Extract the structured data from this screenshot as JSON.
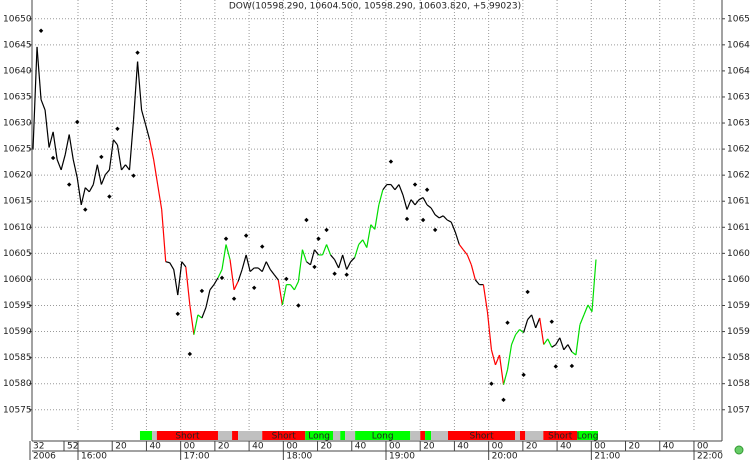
{
  "chart_data": {
    "type": "line",
    "title": "DOW(10598.290, 10604.500, 10598.290, 10603.820, +5.99023)",
    "values": [
      10624.9,
      10644.6,
      10634.5,
      10632.5,
      10625.3,
      10628.3,
      10623,
      10621,
      10623.9,
      10627.8,
      10623,
      10619.5,
      10614.3,
      10617.6,
      10616.8,
      10618.2,
      10622,
      10618.2,
      10620.1,
      10621,
      10626.8,
      10625.8,
      10621,
      10622,
      10621,
      10630.6,
      10641.8,
      10632.5,
      10629.7,
      10626.8,
      10623,
      10618.2,
      10613.4,
      10603.4,
      10603.2,
      10601.9,
      10597,
      10603.4,
      10602.4,
      10595.1,
      10589.4,
      10593.2,
      10592.6,
      10594.6,
      10598,
      10599,
      10600.3,
      10601.9,
      10606.7,
      10603.8,
      10598,
      10599.6,
      10601.9,
      10604.7,
      10601.5,
      10602.2,
      10602.2,
      10601.5,
      10603.4,
      10601.9,
      10600.9,
      10599.9,
      10595.1,
      10599,
      10599,
      10598,
      10599.6,
      10605.7,
      10603.4,
      10602.8,
      10605.7,
      10604.7,
      10604.7,
      10606.7,
      10604.7,
      10603.8,
      10602.2,
      10604.7,
      10601.9,
      10603.4,
      10604.2,
      10606.7,
      10607.6,
      10606.1,
      10610.5,
      10609.6,
      10614.3,
      10617.2,
      10618.2,
      10618.2,
      10617.2,
      10618.2,
      10616.2,
      10613.4,
      10615.3,
      10614.3,
      10615.3,
      10615.7,
      10614.3,
      10613.7,
      10612.4,
      10611.8,
      10612.2,
      10611.4,
      10611,
      10609.1,
      10606.7,
      10605.7,
      10604.7,
      10602.8,
      10599.9,
      10599,
      10599,
      10593.8,
      10586.5,
      10583.6,
      10585.5,
      10579.8,
      10582.7,
      10587.5,
      10589.4,
      10590.4,
      10589.8,
      10592.3,
      10593.2,
      10590.7,
      10592.6,
      10587.5,
      10588.6,
      10587,
      10587.5,
      10588.8,
      10586.5,
      10587.5,
      10586.1,
      10585.5,
      10591.3,
      10593.2,
      10595.1,
      10593.8,
      10603.82
    ],
    "segment_colors": [
      "#000",
      "#000",
      "#000",
      "#000",
      "#000",
      "#000",
      "#000",
      "#000",
      "#000",
      "#000",
      "#000",
      "#000",
      "#000",
      "#000",
      "#000",
      "#000",
      "#000",
      "#000",
      "#000",
      "#000",
      "#000",
      "#000",
      "#000",
      "#000",
      "#000",
      "#000",
      "#000",
      "#000",
      "#000",
      "#000",
      "#f00",
      "#f00",
      "#f00",
      "#f00",
      "#000",
      "#000",
      "#000",
      "#000",
      "#000",
      "#f00",
      "#f00",
      "#0d0",
      "#0d0",
      "#000",
      "#000",
      "#000",
      "#000",
      "#0d0",
      "#0d0",
      "#0d0",
      "#f00",
      "#f00",
      "#000",
      "#000",
      "#000",
      "#000",
      "#000",
      "#000",
      "#000",
      "#000",
      "#000",
      "#000",
      "#f00",
      "#0d0",
      "#0d0",
      "#0d0",
      "#0d0",
      "#0d0",
      "#0d0",
      "#000",
      "#000",
      "#000",
      "#0d0",
      "#0d0",
      "#0d0",
      "#000",
      "#000",
      "#000",
      "#000",
      "#000",
      "#000",
      "#0d0",
      "#0d0",
      "#0d0",
      "#0d0",
      "#0d0",
      "#0d0",
      "#0d0",
      "#000",
      "#000",
      "#000",
      "#000",
      "#000",
      "#000",
      "#000",
      "#000",
      "#000",
      "#000",
      "#000",
      "#000",
      "#000",
      "#000",
      "#000",
      "#000",
      "#000",
      "#000",
      "#000",
      "#f00",
      "#f00",
      "#f00",
      "#f00",
      "#000",
      "#000",
      "#f00",
      "#f00",
      "#f00",
      "#f00",
      "#f00",
      "#0d0",
      "#0d0",
      "#0d0",
      "#0d0",
      "#0d0",
      "#000",
      "#000",
      "#000",
      "#000",
      "#f00",
      "#0d0",
      "#0d0",
      "#000",
      "#000",
      "#000",
      "#000",
      "#000",
      "#0d0",
      "#0d0",
      "#0d0",
      "#0d0",
      "#0d0",
      "#0d0"
    ],
    "markers": [
      null,
      null,
      10647.7,
      null,
      null,
      10623.3,
      null,
      null,
      null,
      10618.2,
      null,
      10630.2,
      null,
      10613.4,
      null,
      null,
      null,
      10623.5,
      null,
      10615.9,
      null,
      10628.9,
      null,
      null,
      null,
      10619.9,
      10643.5,
      null,
      null,
      null,
      null,
      null,
      null,
      null,
      null,
      null,
      10593.4,
      null,
      null,
      10585.7,
      null,
      null,
      10597.8,
      null,
      null,
      null,
      null,
      10600.3,
      10607.8,
      null,
      10596.3,
      null,
      null,
      10608.4,
      null,
      10598.4,
      null,
      10606.3,
      null,
      null,
      null,
      null,
      null,
      10600.1,
      null,
      null,
      10595,
      null,
      10611.4,
      null,
      10602.4,
      10607.8,
      null,
      10609.5,
      null,
      10601.1,
      null,
      null,
      10600.9,
      null,
      null,
      null,
      null,
      null,
      null,
      null,
      null,
      null,
      null,
      10622.6,
      null,
      null,
      null,
      10611.6,
      null,
      10618.2,
      null,
      10611.4,
      10617.2,
      null,
      10609.5,
      null,
      null,
      null,
      null,
      null,
      null,
      null,
      null,
      null,
      null,
      null,
      null,
      null,
      10580,
      null,
      null,
      10576.9,
      10591.7,
      null,
      null,
      null,
      10581.7,
      10597.6,
      null,
      null,
      null,
      null,
      null,
      10591.9,
      10583.3,
      null,
      null,
      null,
      10583.4,
      null,
      null,
      null,
      null,
      null,
      null
    ],
    "marker_color": "#000",
    "ylim": [
      10571.5,
      10653.6
    ],
    "yticks": [
      10575,
      10580,
      10585,
      10590,
      10595,
      10600,
      10605,
      10610,
      10615,
      10620,
      10625,
      10630,
      10635,
      10640,
      10645,
      10650
    ],
    "grid": true,
    "signals": [
      {
        "color": "#00ff00",
        "from": 26.6,
        "to": 29.6
      },
      {
        "color": "#c0c0c0",
        "from": 29.6,
        "to": 30.8
      },
      {
        "color": "#ff0000",
        "from": 30.8,
        "to": 46,
        "label": "Short"
      },
      {
        "color": "#c0c0c0",
        "from": 46,
        "to": 49.5
      },
      {
        "color": "#ff0000",
        "from": 49.5,
        "to": 51
      },
      {
        "color": "#c0c0c0",
        "from": 51,
        "to": 57
      },
      {
        "color": "#ff0000",
        "from": 57,
        "to": 67.7,
        "label": "Short"
      },
      {
        "color": "#00ff00",
        "from": 67.7,
        "to": 74.6,
        "label": "Long"
      },
      {
        "color": "#c0c0c0",
        "from": 74.6,
        "to": 76.4
      },
      {
        "color": "#00ff00",
        "from": 76.4,
        "to": 77.6
      },
      {
        "color": "#c0c0c0",
        "from": 77.6,
        "to": 80.1
      },
      {
        "color": "#00ff00",
        "from": 80.1,
        "to": 93.8,
        "label": "Long"
      },
      {
        "color": "#c0c0c0",
        "from": 93.8,
        "to": 96.3
      },
      {
        "color": "#ff0000",
        "from": 96.3,
        "to": 97.5
      },
      {
        "color": "#00ff00",
        "from": 97.5,
        "to": 99
      },
      {
        "color": "#c0c0c0",
        "from": 99,
        "to": 103.2
      },
      {
        "color": "#ff0000",
        "from": 103.2,
        "to": 119.9,
        "label": "Short"
      },
      {
        "color": "#c0c0c0",
        "from": 119.9,
        "to": 121.1
      },
      {
        "color": "#ff0000",
        "from": 121.1,
        "to": 122.4
      },
      {
        "color": "#c0c0c0",
        "from": 122.4,
        "to": 126.9
      },
      {
        "color": "#ff0000",
        "from": 126.9,
        "to": 135.3,
        "label": "Short"
      },
      {
        "color": "#00ff00",
        "from": 135.3,
        "to": 140.5,
        "label": "Long"
      }
    ],
    "x_minor_labels": [
      "32",
      "52",
      null,
      "20",
      "40",
      "00",
      "20",
      "40",
      "00",
      "20",
      "40",
      "00",
      "20",
      "40",
      "00",
      "20",
      "40",
      "00",
      "20",
      "40",
      "00"
    ],
    "x_major_labels": [
      "2006",
      "16:00",
      "17:00",
      "18:00",
      "19:00",
      "20:00",
      "21:00",
      "22:00"
    ]
  }
}
